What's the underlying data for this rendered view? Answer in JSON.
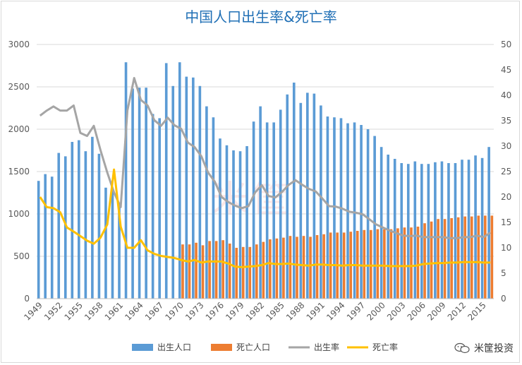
{
  "title": "中国人口出生率&死亡率",
  "watermark": "米筐投资",
  "bg_logo": "米筐",
  "colors": {
    "birth_pop": "#5b9bd5",
    "death_pop": "#ed7d31",
    "birth_rate": "#a5a5a5",
    "death_rate": "#ffc000",
    "grid": "#d9d9d9",
    "axis_text": "#595959"
  },
  "chart_data": {
    "type": "bar",
    "title": "中国人口出生率&死亡率",
    "x": [
      1949,
      1950,
      1951,
      1952,
      1953,
      1954,
      1955,
      1956,
      1957,
      1958,
      1959,
      1960,
      1961,
      1962,
      1963,
      1964,
      1965,
      1966,
      1967,
      1968,
      1969,
      1970,
      1971,
      1972,
      1973,
      1974,
      1975,
      1976,
      1977,
      1978,
      1979,
      1980,
      1981,
      1982,
      1983,
      1984,
      1985,
      1986,
      1987,
      1988,
      1989,
      1990,
      1991,
      1992,
      1993,
      1994,
      1995,
      1996,
      1997,
      1998,
      1999,
      2000,
      2001,
      2002,
      2003,
      2004,
      2005,
      2006,
      2007,
      2008,
      2009,
      2010,
      2011,
      2012,
      2013,
      2014,
      2015,
      2016
    ],
    "x_tick_labels": [
      "1949",
      "1952",
      "1955",
      "1958",
      "1961",
      "1964",
      "1967",
      "1970",
      "1973",
      "1976",
      "1979",
      "1982",
      "1985",
      "1988",
      "1991",
      "1994",
      "1997",
      "2000",
      "2003",
      "2006",
      "2009",
      "2012",
      "2015"
    ],
    "y_left": {
      "min": 0,
      "max": 3000,
      "ticks": [
        "0",
        "500",
        "1000",
        "1500",
        "2000",
        "2500",
        "3000"
      ]
    },
    "y_right": {
      "min": 0,
      "max": 50,
      "ticks": [
        "0",
        "5",
        "10",
        "15",
        "20",
        "25",
        "30",
        "35",
        "40",
        "45",
        "50"
      ]
    },
    "legend_position": "bottom",
    "grid": true,
    "series": [
      {
        "name": "出生人口",
        "kind": "bar",
        "axis": "left",
        "values": [
          1390,
          1470,
          1440,
          1720,
          1680,
          1850,
          1870,
          1740,
          1910,
          1710,
          1310,
          1290,
          1120,
          2790,
          2480,
          2490,
          2490,
          2180,
          2130,
          2780,
          2510,
          2790,
          2620,
          2610,
          2510,
          2270,
          2140,
          1890,
          1810,
          1750,
          1740,
          1800,
          2090,
          2270,
          2080,
          2080,
          2230,
          2410,
          2550,
          2310,
          2430,
          2420,
          2280,
          2150,
          2140,
          2130,
          2070,
          2080,
          2050,
          2000,
          1920,
          1790,
          1700,
          1650,
          1600,
          1590,
          1620,
          1590,
          1590,
          1610,
          1620,
          1600,
          1600,
          1640,
          1640,
          1690,
          1660,
          1790
        ]
      },
      {
        "name": "死亡人口",
        "kind": "bar",
        "axis": "left",
        "values": [
          null,
          null,
          null,
          null,
          null,
          null,
          null,
          null,
          null,
          null,
          null,
          null,
          null,
          null,
          null,
          null,
          null,
          null,
          null,
          null,
          null,
          640,
          640,
          660,
          630,
          680,
          680,
          690,
          650,
          600,
          610,
          610,
          640,
          670,
          700,
          710,
          720,
          740,
          730,
          740,
          730,
          750,
          760,
          780,
          780,
          780,
          790,
          800,
          810,
          810,
          820,
          820,
          820,
          830,
          840,
          840,
          850,
          890,
          910,
          940,
          940,
          950,
          960,
          970,
          970,
          980,
          980,
          980
        ]
      },
      {
        "name": "出生率",
        "kind": "line",
        "axis": "right",
        "values": [
          36.0,
          37.0,
          37.8,
          37.0,
          37.0,
          38.0,
          32.6,
          32.0,
          34.0,
          29.2,
          24.8,
          20.9,
          18.0,
          37.0,
          43.4,
          39.1,
          38.0,
          35.1,
          34.0,
          35.6,
          34.1,
          33.4,
          30.7,
          29.8,
          28.0,
          24.8,
          23.0,
          20.0,
          19.0,
          18.3,
          17.8,
          18.2,
          20.9,
          22.3,
          20.2,
          19.9,
          21.0,
          22.4,
          23.3,
          22.4,
          21.6,
          21.1,
          19.7,
          18.2,
          18.1,
          17.7,
          17.1,
          16.9,
          16.6,
          15.6,
          14.6,
          14.0,
          13.4,
          12.9,
          12.4,
          12.3,
          12.4,
          12.1,
          12.1,
          12.1,
          12.1,
          11.9,
          11.9,
          12.1,
          12.1,
          12.4,
          12.1,
          13.0
        ]
      },
      {
        "name": "死亡率",
        "kind": "line",
        "axis": "right",
        "values": [
          20.0,
          18.0,
          17.8,
          17.0,
          14.0,
          13.2,
          12.3,
          11.4,
          10.8,
          12.0,
          14.6,
          25.4,
          14.2,
          10.0,
          10.0,
          11.5,
          9.5,
          8.8,
          8.4,
          8.2,
          8.0,
          7.6,
          7.3,
          7.6,
          7.1,
          7.3,
          7.3,
          7.3,
          6.9,
          6.3,
          6.2,
          6.3,
          6.4,
          6.6,
          7.0,
          6.8,
          6.8,
          6.9,
          6.7,
          6.6,
          6.5,
          6.7,
          6.7,
          6.6,
          6.6,
          6.5,
          6.6,
          6.6,
          6.5,
          6.5,
          6.5,
          6.5,
          6.4,
          6.4,
          6.4,
          6.4,
          6.5,
          6.8,
          6.9,
          7.0,
          7.0,
          7.1,
          7.1,
          7.2,
          7.2,
          7.2,
          7.1,
          7.1
        ]
      }
    ]
  },
  "legend": [
    {
      "label": "出生人口",
      "kind": "bar",
      "color_key": "birth_pop"
    },
    {
      "label": "死亡人口",
      "kind": "bar",
      "color_key": "death_pop"
    },
    {
      "label": "出生率",
      "kind": "line",
      "color_key": "birth_rate"
    },
    {
      "label": "死亡率",
      "kind": "line",
      "color_key": "death_rate"
    }
  ]
}
